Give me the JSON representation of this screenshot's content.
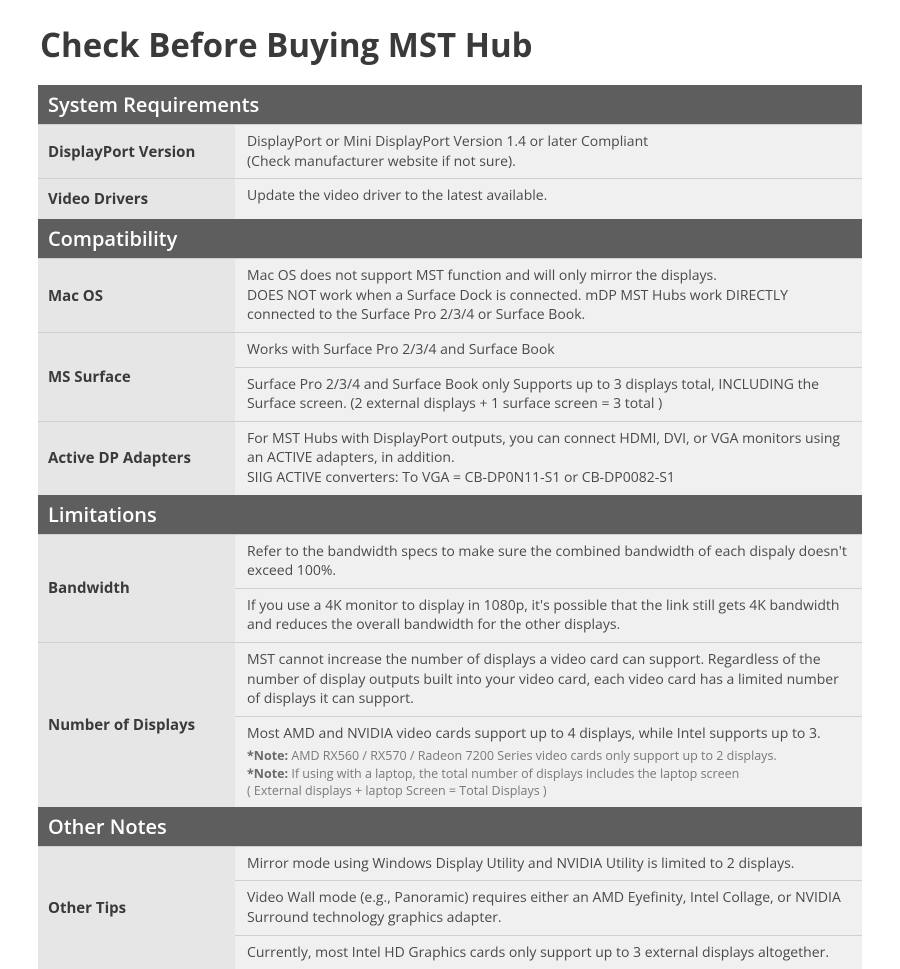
{
  "title": "Check Before Buying MST Hub",
  "colors": {
    "header_bg": "#5e5e5e",
    "header_text": "#ffffff",
    "label_bg": "#e6e6e6",
    "value_bg": "#f0f0f0",
    "text_dark": "#3a3a3a",
    "text_body": "#4a4a4a",
    "text_note": "#7a7a7a",
    "border": "#d0d0d0"
  },
  "sections": {
    "sysreq": {
      "header": "System Requirements",
      "dp_version": {
        "label": "DisplayPort Version",
        "value": "DisplayPort or Mini DisplayPort Version 1.4 or later Compliant\n(Check manufacturer website if not sure)."
      },
      "video_drivers": {
        "label": "Video Drivers",
        "value": "Update the video driver to the latest available."
      }
    },
    "compat": {
      "header": "Compatibility",
      "macos": {
        "label": "Mac OS",
        "value": "Mac OS does not support MST function and will only mirror the displays.\nDOES NOT work when a Surface Dock is connected. mDP MST Hubs work DIRECTLY connected to the Surface Pro 2/3/4 or Surface Book."
      },
      "ms_surface": {
        "label": "MS Surface",
        "value1": "Works with Surface Pro 2/3/4 and Surface Book",
        "value2": "Surface Pro 2/3/4 and Surface Book only Supports up to 3 displays total, INCLUDING the Surface screen. (2 external displays + 1 surface screen = 3 total )"
      },
      "active_dp": {
        "label": "Active DP Adapters",
        "value": "For MST Hubs with DisplayPort outputs, you can connect HDMI, DVI, or VGA monitors using an ACTIVE adapters, in addition.\nSIIG ACTIVE converters: To VGA = CB-DP0N11-S1 or CB-DP0082-S1"
      }
    },
    "limits": {
      "header": "Limitations",
      "bandwidth": {
        "label": "Bandwidth",
        "value1": "Refer to the bandwidth specs to make sure the combined bandwidth of each dispaly doesn't exceed 100%.",
        "value2": "If you use a 4K monitor to display in 1080p, it's possible that the link still gets 4K bandwidth and reduces the overall bandwidth for the other displays."
      },
      "num_displays": {
        "label": "Number of Displays",
        "value1": "MST cannot increase the number of displays a video card can support. Regardless of the number of display outputs built into your video card, each video card has a limited  number of displays it can support.",
        "value2": "Most AMD and NVIDIA video cards support up to 4 displays, while Intel supports up to 3.",
        "note1_label": "*Note:",
        "note1": " AMD RX560 / RX570 / Radeon 7200 Series video cards only support up to 2 displays.",
        "note2_label": "*Note:",
        "note2": " If using with a laptop, the total number of displays includes the laptop screen\n ( External displays + laptop Screen = Total Displays )"
      }
    },
    "other": {
      "header": "Other Notes",
      "tips": {
        "label": "Other Tips",
        "value1": "Mirror mode using Windows Display Utility and NVIDIA Utility is limited to 2 displays.",
        "value2": "Video Wall mode (e.g., Panoramic) requires either an AMD Eyefinity, Intel Collage, or NVIDIA Surround technology graphics adapter.",
        "value3": "Currently, most Intel HD Graphics cards only support up to 3 external displays altogether."
      }
    }
  }
}
